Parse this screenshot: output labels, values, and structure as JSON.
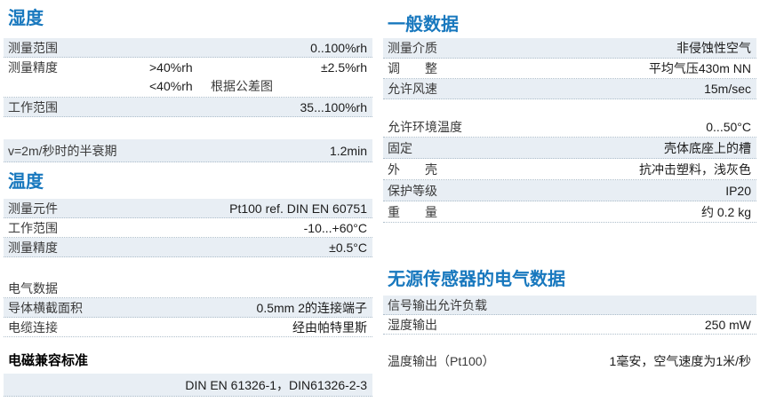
{
  "colors": {
    "heading_blue": "#1878be",
    "row_shade": "#e8eef4",
    "row_border": "#aebecb",
    "text": "#333333"
  },
  "left": {
    "humidity": {
      "title": "湿度",
      "rows": [
        {
          "label": "测量范围",
          "value": "0..100%rh"
        },
        {
          "label": "测量精度",
          "cond1": ">40%rh",
          "value1": "±2.5%rh",
          "cond2": "<40%rh",
          "value2": "根据公差图"
        },
        {
          "label": "工作范围",
          "value": "35...100%rh"
        }
      ],
      "halflife": {
        "label": "v=2m/秒时的半衰期",
        "value": "1.2min"
      }
    },
    "temperature": {
      "title": "温度",
      "rows": [
        {
          "label": "测量元件",
          "value": "Pt100 ref. DIN EN 60751"
        },
        {
          "label": "工作范围",
          "value": "-10...+60°C"
        },
        {
          "label": "测量精度",
          "value": "±0.5°C"
        }
      ]
    },
    "electrical": {
      "rows": [
        {
          "label": "电气数据",
          "value": ""
        },
        {
          "label": "导体横截面积",
          "value": "0.5mm 2的连接端子"
        },
        {
          "label": "电缆连接",
          "value": "经由帕特里斯"
        }
      ]
    },
    "emc": {
      "title": "电磁兼容标准",
      "value": "DIN EN 61326-1，DIN61326-2-3"
    }
  },
  "right": {
    "general": {
      "title": "一般数据",
      "rows_top": [
        {
          "label": "测量介质",
          "value": "非侵蚀性空气"
        },
        {
          "label": "调　　整",
          "value": "平均气压430m NN"
        },
        {
          "label": "允许风速",
          "value": "15m/sec"
        }
      ],
      "rows_bottom": [
        {
          "label": "允许环境温度",
          "value": "0...50°C"
        },
        {
          "label": "固定",
          "value": "壳体底座上的槽"
        },
        {
          "label": "外　　壳",
          "value": "抗冲击塑料，浅灰色"
        },
        {
          "label": "保护等级",
          "value": "IP20"
        },
        {
          "label": "重　　量",
          "value": "约 0.2 kg"
        }
      ]
    },
    "passive": {
      "title": "无源传感器的电气数据",
      "rows": [
        {
          "label": "信号输出允许负载",
          "value": ""
        },
        {
          "label": "湿度输出",
          "value": "250 mW"
        }
      ],
      "temp_output": {
        "label": "温度输出（Pt100）",
        "value": "1毫安，空气速度为1米/秒"
      }
    }
  }
}
